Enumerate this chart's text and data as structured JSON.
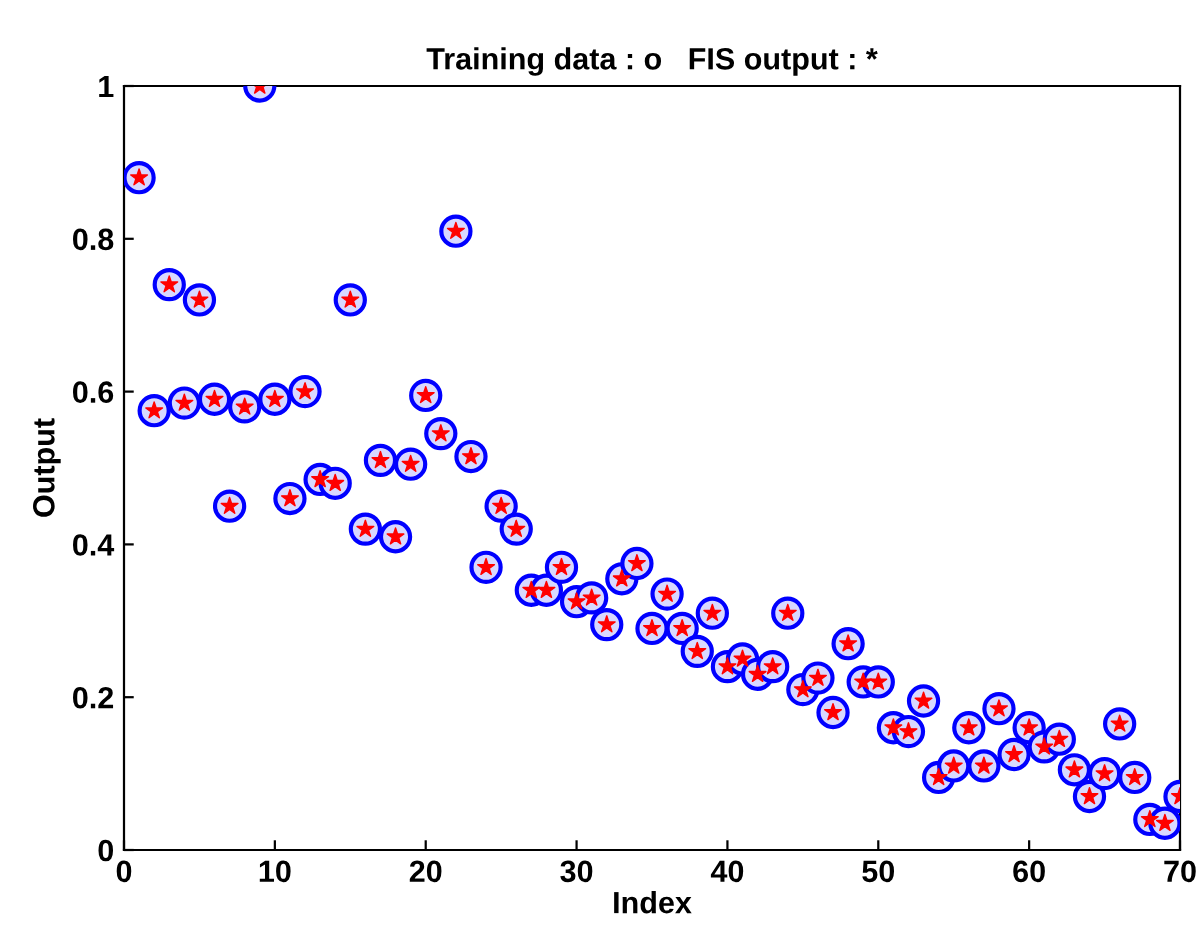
{
  "chart_data": {
    "type": "scatter",
    "title": "Training data : o   FIS output : *",
    "xlabel": "Index",
    "ylabel": "Output",
    "x": [
      1,
      2,
      3,
      4,
      5,
      6,
      7,
      8,
      9,
      10,
      11,
      12,
      13,
      14,
      15,
      16,
      17,
      18,
      19,
      20,
      21,
      22,
      23,
      24,
      25,
      26,
      27,
      28,
      29,
      30,
      31,
      32,
      33,
      34,
      35,
      36,
      37,
      38,
      39,
      40,
      41,
      42,
      43,
      44,
      45,
      46,
      47,
      48,
      49,
      50,
      51,
      52,
      53,
      54,
      55,
      56,
      57,
      58,
      59,
      60,
      61,
      62,
      63,
      64,
      65,
      66,
      67,
      68,
      69,
      70
    ],
    "series": [
      {
        "color": "#0000ff",
        "marker": "circle",
        "values": [
          0.88,
          0.575,
          0.74,
          0.585,
          0.72,
          0.59,
          0.45,
          0.58,
          1.0,
          0.59,
          0.46,
          0.6,
          0.485,
          0.48,
          0.72,
          0.42,
          0.51,
          0.41,
          0.505,
          0.595,
          0.545,
          0.81,
          0.515,
          0.37,
          0.45,
          0.42,
          0.34,
          0.34,
          0.37,
          0.325,
          0.33,
          0.295,
          0.355,
          0.375,
          0.29,
          0.335,
          0.29,
          0.26,
          0.31,
          0.24,
          0.25,
          0.23,
          0.24,
          0.31,
          0.21,
          0.225,
          0.18,
          0.27,
          0.22,
          0.22,
          0.16,
          0.155,
          0.195,
          0.095,
          0.11,
          0.16,
          0.11,
          0.185,
          0.125,
          0.16,
          0.135,
          0.145,
          0.105,
          0.07,
          0.1,
          0.165,
          0.095,
          0.04,
          0.035,
          0.07
        ]
      },
      {
        "color": "#ff0000",
        "marker": "star",
        "values": [
          0.88,
          0.575,
          0.74,
          0.585,
          0.72,
          0.59,
          0.45,
          0.58,
          1.0,
          0.59,
          0.46,
          0.6,
          0.485,
          0.48,
          0.72,
          0.42,
          0.51,
          0.41,
          0.505,
          0.595,
          0.545,
          0.81,
          0.515,
          0.37,
          0.45,
          0.42,
          0.34,
          0.34,
          0.37,
          0.325,
          0.33,
          0.295,
          0.355,
          0.375,
          0.29,
          0.335,
          0.29,
          0.26,
          0.31,
          0.24,
          0.25,
          0.23,
          0.24,
          0.31,
          0.21,
          0.225,
          0.18,
          0.27,
          0.22,
          0.22,
          0.16,
          0.155,
          0.195,
          0.095,
          0.11,
          0.16,
          0.11,
          0.185,
          0.125,
          0.16,
          0.135,
          0.145,
          0.105,
          0.07,
          0.1,
          0.165,
          0.095,
          0.04,
          0.035,
          0.07
        ]
      }
    ],
    "xlim": [
      0,
      70
    ],
    "xticks": [
      0,
      10,
      20,
      30,
      40,
      50,
      60,
      70
    ],
    "ylim": [
      0,
      1
    ],
    "yticks": [
      0,
      0.2,
      0.4,
      0.6,
      0.8,
      1
    ],
    "grid": false,
    "legend": false
  }
}
